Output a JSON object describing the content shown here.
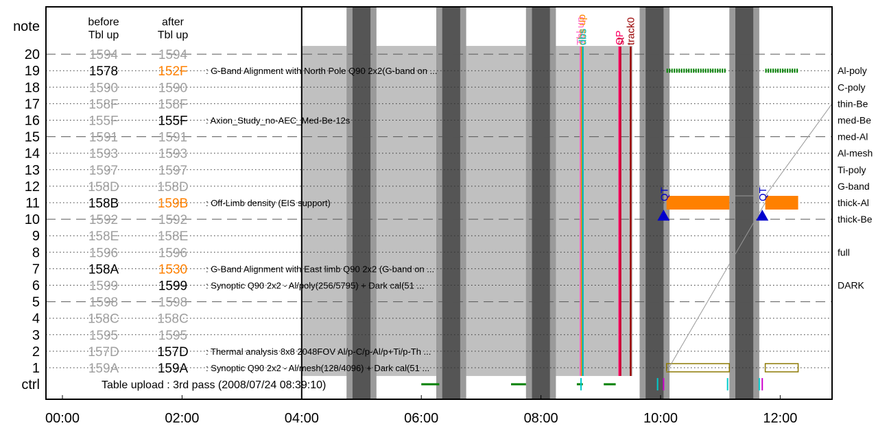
{
  "chart_data": {
    "type": "timeline",
    "x_axis": {
      "ticks": [
        "00:00",
        "02:00",
        "04:00",
        "06:00",
        "08:00",
        "10:00",
        "12:00"
      ],
      "range_hours": [
        0,
        12.3
      ]
    },
    "y_axis": {
      "labels": [
        "ctrl",
        "1",
        "2",
        "3",
        "4",
        "5",
        "6",
        "7",
        "8",
        "9",
        "10",
        "11",
        "12",
        "13",
        "14",
        "15",
        "16",
        "17",
        "18",
        "19",
        "20",
        "note"
      ]
    },
    "headers": {
      "before": [
        "before",
        "Tbl up"
      ],
      "after": [
        "after",
        "Tbl up"
      ]
    },
    "table": [
      {
        "row": 1,
        "before": "159A",
        "after": "159A",
        "b_style": "gray",
        "a_style": "black",
        "desc": ": Synoptic Q90 2x2 - Al/mesh(128/4096) + Dark cal(51 ..."
      },
      {
        "row": 2,
        "before": "157D",
        "after": "157D",
        "b_style": "gray",
        "a_style": "black",
        "desc": ": Thermal analysis 8x8 2048FOV Al/p-C/p-Al/p+Ti/p-Th ..."
      },
      {
        "row": 3,
        "before": "1595",
        "after": "1595",
        "b_style": "gray",
        "a_style": "gray",
        "desc": ""
      },
      {
        "row": 4,
        "before": "158C",
        "after": "158C",
        "b_style": "gray",
        "a_style": "gray",
        "desc": ""
      },
      {
        "row": 5,
        "before": "1598",
        "after": "1598",
        "b_style": "gray",
        "a_style": "gray",
        "desc": ""
      },
      {
        "row": 6,
        "before": "1599",
        "after": "1599",
        "b_style": "gray",
        "a_style": "black",
        "desc": ": Synoptic Q90 2x2 - Al/poly(256/5795) + Dark cal(51 ..."
      },
      {
        "row": 7,
        "before": "158A",
        "after": "1530",
        "b_style": "black",
        "a_style": "orange",
        "desc": ": G-Band Alignment with East limb Q90 2x2 (G-band on ..."
      },
      {
        "row": 8,
        "before": "1596",
        "after": "1596",
        "b_style": "gray",
        "a_style": "gray",
        "desc": ""
      },
      {
        "row": 9,
        "before": "158E",
        "after": "158E",
        "b_style": "gray",
        "a_style": "gray",
        "desc": ""
      },
      {
        "row": 10,
        "before": "1592",
        "after": "1592",
        "b_style": "gray",
        "a_style": "gray",
        "desc": ""
      },
      {
        "row": 11,
        "before": "158B",
        "after": "159B",
        "b_style": "black",
        "a_style": "orange",
        "desc": ": Off-Limb density (EIS support)"
      },
      {
        "row": 12,
        "before": "158D",
        "after": "158D",
        "b_style": "gray",
        "a_style": "gray",
        "desc": ""
      },
      {
        "row": 13,
        "before": "1597",
        "after": "1597",
        "b_style": "gray",
        "a_style": "gray",
        "desc": ""
      },
      {
        "row": 14,
        "before": "1593",
        "after": "1593",
        "b_style": "gray",
        "a_style": "gray",
        "desc": ""
      },
      {
        "row": 15,
        "before": "1591",
        "after": "1591",
        "b_style": "gray",
        "a_style": "gray",
        "desc": ""
      },
      {
        "row": 16,
        "before": "155F",
        "after": "155F",
        "b_style": "gray",
        "a_style": "black",
        "desc": ": Axion_Study_no-AEC_Med-Be-12s"
      },
      {
        "row": 17,
        "before": "158F",
        "after": "158F",
        "b_style": "gray",
        "a_style": "gray",
        "desc": ""
      },
      {
        "row": 18,
        "before": "1590",
        "after": "1590",
        "b_style": "gray",
        "a_style": "gray",
        "desc": ""
      },
      {
        "row": 19,
        "before": "1578",
        "after": "152F",
        "b_style": "black",
        "a_style": "orange",
        "desc": ": G-Band Alignment with North Pole Q90 2x2(G-band on ..."
      },
      {
        "row": 20,
        "before": "1594",
        "after": "1594",
        "b_style": "gray",
        "a_style": "gray",
        "desc": ""
      }
    ],
    "filters": [
      {
        "label": "Al-poly",
        "row": 19
      },
      {
        "label": "C-poly",
        "row": 18
      },
      {
        "label": "thin-Be",
        "row": 17
      },
      {
        "label": "med-Be",
        "row": 16
      },
      {
        "label": "med-Al",
        "row": 15
      },
      {
        "label": "Al-mesh",
        "row": 14
      },
      {
        "label": "Ti-poly",
        "row": 13
      },
      {
        "label": "G-band",
        "row": 12
      },
      {
        "label": "thick-Al",
        "row": 11
      },
      {
        "label": "thick-Be",
        "row": 10
      },
      {
        "label": "full",
        "row": 8
      },
      {
        "label": "DARK",
        "row": 6
      }
    ],
    "ctrl_label": "Table upload : 3rd pass (2008/07/24 08:39:10)",
    "upload_region": {
      "start_h": 4.0,
      "end_h": 9.53,
      "top_row": 20.5,
      "bottom_row": 0.5
    },
    "eclipses": [
      {
        "start_h": 4.75,
        "end_h": 5.25,
        "core_start_h": 4.85,
        "core_end_h": 5.15
      },
      {
        "start_h": 6.25,
        "end_h": 6.75,
        "core_start_h": 6.35,
        "core_end_h": 6.65
      },
      {
        "start_h": 7.75,
        "end_h": 8.25,
        "core_start_h": 7.85,
        "core_end_h": 8.15
      },
      {
        "start_h": 9.65,
        "end_h": 10.15,
        "core_start_h": 9.75,
        "core_end_h": 10.05
      },
      {
        "start_h": 11.15,
        "end_h": 11.65,
        "core_start_h": 11.25,
        "core_end_h": 11.55
      }
    ],
    "events": [
      {
        "label": "Tbl up",
        "x_h": 8.66,
        "color": "#ff66cc"
      },
      {
        "label": "obs up",
        "x_h": 8.68,
        "color": "#ff8800"
      },
      {
        "label": "dbs",
        "x_h": 8.7,
        "color": "#00bbbb"
      },
      {
        "label": "OP",
        "x_h": 9.31,
        "color": "#ff0066"
      },
      {
        "label": "st",
        "x_h": 9.33,
        "color": "#cc0033"
      },
      {
        "label": "track0",
        "x_h": 9.5,
        "color": "#990000"
      }
    ],
    "qt_markers": [
      {
        "label": "QT",
        "x_h": 10.05,
        "row": 10.25
      },
      {
        "label": "QT",
        "x_h": 11.7,
        "row": 10.25
      }
    ],
    "thick_al_bars": [
      {
        "start_h": 10.1,
        "end_h": 11.15
      },
      {
        "start_h": 11.75,
        "end_h": 12.3
      }
    ],
    "alpoly_bars": [
      {
        "start_h": 10.1,
        "end_h": 11.1
      },
      {
        "start_h": 11.75,
        "end_h": 12.3
      }
    ],
    "row1_boxes": [
      {
        "start_h": 10.1,
        "end_h": 11.15
      },
      {
        "start_h": 11.75,
        "end_h": 12.3
      }
    ],
    "ctrl_marks": [
      {
        "x_h": 6.0,
        "x2_h": 6.3,
        "type": "green"
      },
      {
        "x_h": 7.5,
        "x2_h": 7.75,
        "type": "green"
      },
      {
        "x_h": 8.6,
        "x2_h": 8.7,
        "type": "green"
      },
      {
        "x_h": 9.05,
        "x2_h": 9.25,
        "type": "green"
      },
      {
        "x_h": 8.67,
        "x2_h": 8.67,
        "type": "cyan"
      },
      {
        "x_h": 9.95,
        "x2_h": 9.95,
        "type": "cyan"
      },
      {
        "x_h": 10.05,
        "x2_h": 10.05,
        "type": "magenta"
      },
      {
        "x_h": 11.12,
        "x2_h": 11.12,
        "type": "cyan"
      },
      {
        "x_h": 11.65,
        "x2_h": 11.65,
        "type": "cyan"
      },
      {
        "x_h": 11.7,
        "x2_h": 11.7,
        "type": "magenta"
      }
    ],
    "colors": {
      "gray_text": "#a0a0a0",
      "orange": "#ff8000",
      "upload_fill": "#c0c0c0",
      "eclipse_outer": "#9a9a9a",
      "eclipse_core": "#555555",
      "green": "#008000",
      "olive": "#8c7800",
      "qt_blue": "#0000cc"
    }
  }
}
